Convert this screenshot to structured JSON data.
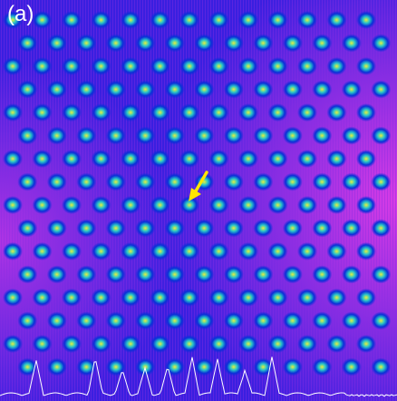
{
  "figure": {
    "panel_label": "(a)",
    "colors": {
      "background": "#3a1fe0",
      "magenta": "#e13de6",
      "spot_outer": "#0a2fd8",
      "spot_mid": "#27c4c9",
      "spot_core": "#e7f03c",
      "arrow": "#ffe600",
      "trace": "#ffffff"
    },
    "pattern": {
      "rows": 16,
      "columns": 13,
      "lattice": "triangular"
    },
    "annotation": {
      "arrow_icon": "yellow-arrow-icon"
    }
  }
}
